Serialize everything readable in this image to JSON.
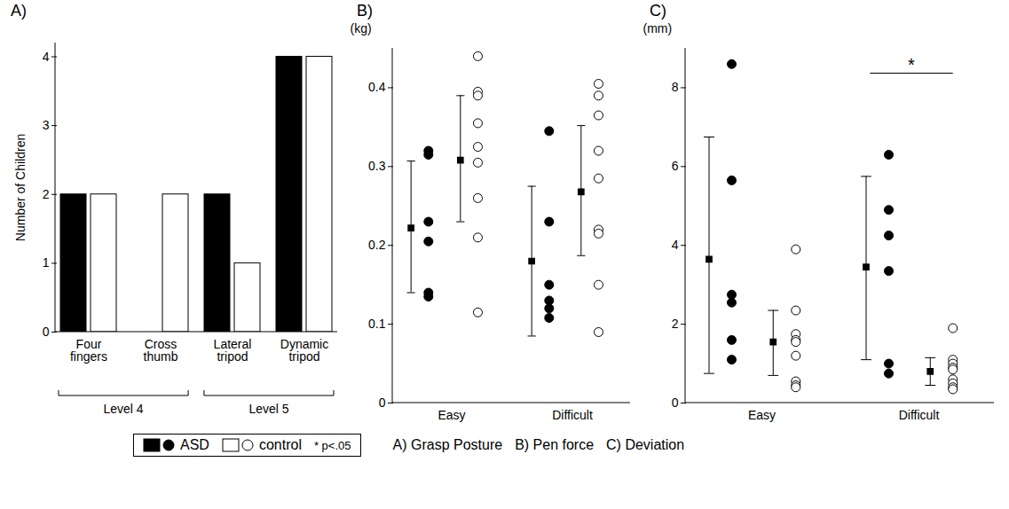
{
  "chart_data": [
    {
      "type": "bar",
      "title": "A)",
      "caption": "A) Grasp Posture",
      "ylabel": "Number of Children",
      "categories": [
        "Four fingers",
        "Cross thumb",
        "Lateral tripod",
        "Dynamic tripod"
      ],
      "series": [
        {
          "name": "ASD",
          "color": "#000000",
          "values": [
            2,
            0,
            2,
            4
          ]
        },
        {
          "name": "control",
          "color": "#ffffff",
          "values": [
            2,
            2,
            1,
            4
          ]
        }
      ],
      "groups": [
        {
          "label": "Level 4",
          "categories": [
            "Four fingers",
            "Cross thumb"
          ]
        },
        {
          "label": "Level 5",
          "categories": [
            "Lateral tripod",
            "Dynamic tripod"
          ]
        }
      ],
      "ylim": [
        0,
        4.2
      ],
      "yticks": [
        0,
        1,
        2,
        3,
        4
      ]
    },
    {
      "type": "scatter",
      "title": "B)",
      "caption": "B) Pen force",
      "ylabel": "(kg)",
      "categories": [
        "Easy",
        "Difficult"
      ],
      "series": [
        {
          "name": "ASD",
          "color": "#000000",
          "marker": "filled_circle",
          "values": [
            [
              0.32,
              0.315,
              0.23,
              0.205,
              0.14,
              0.135
            ],
            [
              0.345,
              0.23,
              0.15,
              0.13,
              0.12,
              0.108
            ]
          ],
          "mean": [
            0.222,
            0.18
          ],
          "error_low": [
            0.14,
            0.085
          ],
          "error_high": [
            0.307,
            0.275
          ]
        },
        {
          "name": "control",
          "color": "#000000",
          "marker": "open_circle",
          "values": [
            [
              0.44,
              0.395,
              0.39,
              0.355,
              0.325,
              0.305,
              0.26,
              0.21,
              0.115
            ],
            [
              0.405,
              0.39,
              0.365,
              0.32,
              0.285,
              0.22,
              0.215,
              0.15,
              0.09
            ]
          ],
          "mean": [
            0.308,
            0.268
          ],
          "error_low": [
            0.23,
            0.187
          ],
          "error_high": [
            0.39,
            0.352
          ]
        }
      ],
      "ylim": [
        0,
        0.45
      ],
      "yticks": [
        0,
        0.1,
        0.2,
        0.3,
        0.4
      ]
    },
    {
      "type": "scatter",
      "title": "C)",
      "caption": "C) Deviation",
      "ylabel": "(mm)",
      "note": "* p<.05",
      "categories": [
        "Easy",
        "Difficult"
      ],
      "series": [
        {
          "name": "ASD",
          "color": "#000000",
          "marker": "filled_circle",
          "values": [
            [
              8.6,
              5.65,
              2.75,
              2.55,
              1.6,
              1.1
            ],
            [
              6.3,
              4.9,
              4.25,
              3.35,
              1.0,
              0.75
            ]
          ],
          "mean": [
            3.65,
            3.45
          ],
          "error_low": [
            0.75,
            1.1
          ],
          "error_high": [
            6.75,
            5.75
          ]
        },
        {
          "name": "control",
          "color": "#000000",
          "marker": "open_circle",
          "values": [
            [
              3.9,
              2.35,
              1.75,
              1.6,
              1.55,
              1.2,
              0.55,
              0.45,
              0.4
            ],
            [
              1.9,
              1.1,
              1.0,
              0.9,
              0.85,
              0.6,
              0.5,
              0.4,
              0.35
            ]
          ],
          "mean": [
            1.55,
            0.8
          ],
          "error_low": [
            0.7,
            0.45
          ],
          "error_high": [
            2.35,
            1.15
          ]
        }
      ],
      "annotations": [
        {
          "text": "*",
          "category": "Difficult"
        }
      ],
      "ylim": [
        0,
        9
      ],
      "yticks": [
        0,
        2,
        4,
        6,
        8
      ]
    }
  ]
}
